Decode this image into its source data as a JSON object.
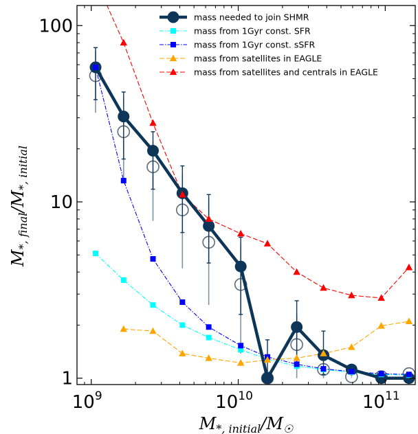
{
  "chart_data": {
    "type": "line",
    "xlabel": "M*,initial/M☉",
    "ylabel": "M*,final/M*,initial",
    "x_scale": "log",
    "y_scale": "log",
    "xlim": [
      800000000,
      160000000000
    ],
    "ylim": [
      0.92,
      130
    ],
    "x_ticks": [
      {
        "value": 1000000000,
        "base": "10",
        "exp": "9"
      },
      {
        "value": 10000000000,
        "base": "10",
        "exp": "10"
      },
      {
        "value": 100000000000,
        "base": "10",
        "exp": "11"
      }
    ],
    "y_ticks": [
      {
        "value": 1,
        "label": "1"
      },
      {
        "value": 10,
        "label": "10"
      },
      {
        "value": 100,
        "label": "100"
      }
    ],
    "grid": false,
    "legend_position": "top-right",
    "colors": {
      "shmr": "#0d3558",
      "sfr": "#00ffff",
      "ssfr": "#0000ff",
      "satellites": "#ffa500",
      "centrals": "#ff0000",
      "open_markers": "#5a6a7a",
      "open_errorbars": "#7f93a8"
    },
    "series": [
      {
        "key": "shmr",
        "name": "mass needed to join SHMR",
        "style": "thick-line-circles",
        "x": [
          1070000000,
          1660000000,
          2630000000,
          4170000000,
          6300000000,
          10400000000,
          15800000000,
          25000000000,
          38000000000,
          59000000000,
          94000000000,
          145000000000
        ],
        "y": [
          58,
          30.5,
          19.5,
          11.2,
          7.3,
          4.3,
          1.0,
          1.95,
          1.35,
          1.12,
          1.0,
          1.0
        ],
        "yerr_low": [
          38,
          17.5,
          11.8,
          6.7,
          4.5,
          2.3,
          1.0,
          1.2,
          1.05,
          1.05,
          1.0,
          1.0
        ],
        "yerr_high": [
          75,
          42,
          25,
          16,
          11,
          6.3,
          1.65,
          2.75,
          1.85,
          1.18,
          1.0,
          1.0
        ]
      },
      {
        "key": "sfr",
        "name": "mass from 1Gyr const. SFR",
        "style": "dash-dot-squares",
        "x": [
          1070000000,
          1660000000,
          2630000000,
          4170000000,
          6300000000,
          10400000000,
          15800000000,
          25000000000,
          38000000000,
          59000000000,
          94000000000,
          145000000000
        ],
        "y": [
          5.1,
          3.6,
          2.6,
          2.0,
          1.7,
          1.45,
          1.28,
          1.17,
          1.12,
          1.08,
          1.05,
          1.04
        ]
      },
      {
        "key": "ssfr",
        "name": "mass from 1Gyr const. sSFR",
        "style": "dash-dot-squares",
        "x": [
          1070000000,
          1660000000,
          2630000000,
          4170000000,
          6300000000,
          10400000000,
          15800000000,
          25000000000,
          38000000000,
          59000000000,
          94000000000,
          145000000000
        ],
        "y": [
          58,
          13.2,
          4.75,
          2.7,
          1.95,
          1.53,
          1.32,
          1.2,
          1.13,
          1.09,
          1.06,
          1.05
        ]
      },
      {
        "key": "satellites",
        "name": "mass from satellites in EAGLE",
        "style": "dashed-triangles",
        "x": [
          1660000000,
          2630000000,
          4170000000,
          6300000000,
          10400000000,
          15800000000,
          25000000000,
          38000000000,
          59000000000,
          94000000000,
          145000000000
        ],
        "y": [
          1.9,
          1.85,
          1.38,
          1.3,
          1.22,
          1.27,
          1.3,
          1.38,
          1.5,
          1.98,
          2.1
        ]
      },
      {
        "key": "centrals",
        "name": "mass from satellites and centrals in EAGLE",
        "style": "dashed-triangles",
        "x": [
          1660000000,
          2630000000,
          4170000000,
          6300000000,
          10400000000,
          15800000000,
          25000000000,
          38000000000,
          59000000000,
          94000000000,
          145000000000
        ],
        "y": [
          80,
          28,
          11,
          8.0,
          6.6,
          5.8,
          4.0,
          3.25,
          2.95,
          2.85,
          4.25
        ]
      },
      {
        "key": "shmr_open",
        "style": "open-circles-errorbars",
        "x": [
          1070000000,
          1660000000,
          2630000000,
          4170000000,
          6300000000,
          10400000000,
          15800000000,
          25000000000,
          38000000000,
          59000000000,
          94000000000,
          145000000000
        ],
        "y": [
          52,
          25,
          15.8,
          9.0,
          5.9,
          3.4,
          1.0,
          1.55,
          1.12,
          1.02,
          1.02,
          1.06
        ],
        "yerr_low": [
          32,
          13.5,
          7.8,
          4.2,
          2.6,
          1.38,
          1.0,
          1.0,
          1.0,
          1.0,
          1.0,
          1.0
        ],
        "yerr_high": [
          72,
          39,
          22,
          14.5,
          10.5,
          5.8,
          1.0,
          2.3,
          1.15,
          1.05,
          1.02,
          1.08
        ]
      }
    ]
  }
}
